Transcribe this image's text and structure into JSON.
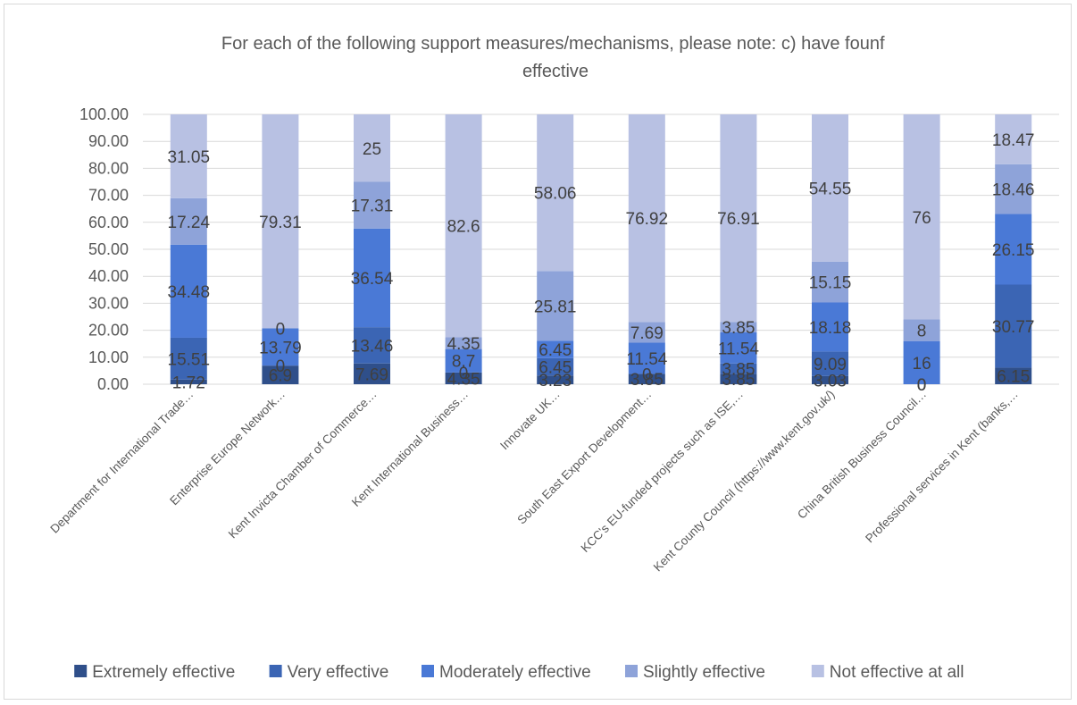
{
  "chart_data": {
    "type": "bar",
    "stacked": true,
    "title": "For each of the following support measures/mechanisms, please note: c) have founf effective",
    "xlabel": "",
    "ylabel": "",
    "ylim": [
      0,
      100
    ],
    "yticks": [
      "0.00",
      "10.00",
      "20.00",
      "30.00",
      "40.00",
      "50.00",
      "60.00",
      "70.00",
      "80.00",
      "90.00",
      "100.00"
    ],
    "grid": true,
    "legend_position": "bottom",
    "categories": [
      "Department for International Trade…",
      "Enterprise Europe Network…",
      "Kent Invicta Chamber of Commerce…",
      "Kent International Business…",
      "Innovate UK…",
      "South East Export Development…",
      "KCC's EU-funded projects such as ISE,…",
      "Kent County Council (https://www.kent.gov.uk/)",
      "China British Business Council…",
      "Professional services in Kent (banks,…"
    ],
    "series": [
      {
        "name": "Extremely effective",
        "color": "#2f4f8a",
        "values": [
          1.72,
          6.9,
          7.69,
          4.35,
          3.23,
          3.85,
          3.85,
          3.03,
          0,
          6.15
        ],
        "labels": [
          "1.72",
          "6.9",
          "7.69",
          "4.35",
          "3.23",
          "3.85",
          "3.85",
          "3.03",
          "0",
          "6.15"
        ]
      },
      {
        "name": "Very effective",
        "color": "#3b65b4",
        "values": [
          15.51,
          0,
          13.46,
          0,
          6.45,
          0,
          3.85,
          9.09,
          0,
          30.77
        ],
        "labels": [
          "15.51",
          "0",
          "13.46",
          "0",
          "6.45",
          "0",
          "3.85",
          "9.09",
          "0",
          "30.77"
        ]
      },
      {
        "name": "Moderately effective",
        "color": "#4a79d6",
        "values": [
          34.48,
          13.79,
          36.54,
          8.7,
          6.45,
          11.54,
          11.54,
          18.18,
          16,
          26.15
        ],
        "labels": [
          "34.48",
          "13.79",
          "36.54",
          "8.7",
          "6.45",
          "11.54",
          "11.54",
          "18.18",
          "16",
          "26.15"
        ]
      },
      {
        "name": "Slightly effective",
        "color": "#8ea3d9",
        "values": [
          17.24,
          0,
          17.31,
          4.35,
          25.81,
          7.69,
          3.85,
          15.15,
          8,
          18.46
        ],
        "labels": [
          "17.24",
          "0",
          "17.31",
          "4.35",
          "25.81",
          "7.69",
          "3.85",
          "15.15",
          "8",
          "18.46"
        ]
      },
      {
        "name": "Not effective at all",
        "color": "#b8c1e3",
        "values": [
          31.05,
          79.31,
          25,
          82.6,
          58.06,
          76.92,
          76.91,
          54.55,
          76,
          18.47
        ],
        "labels": [
          "31.05",
          "79.31",
          "25",
          "82.6",
          "58.06",
          "76.92",
          "76.91",
          "54.55",
          "76",
          "18.47"
        ]
      }
    ]
  }
}
